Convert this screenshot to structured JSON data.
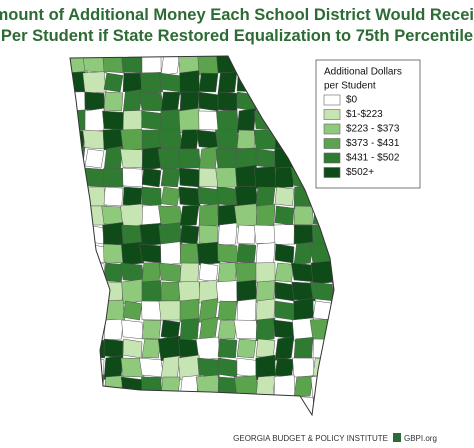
{
  "title": [
    "Amount of Additional Money Each School District Would Receive",
    "Per Student if State Restored Equalization to 75th Percentile"
  ],
  "legend": {
    "title": [
      "Additional Dollars",
      "per Student"
    ],
    "entries": [
      {
        "label": "$0",
        "color": "#ffffff"
      },
      {
        "label": "$1-$223",
        "color": "#c6e5b3"
      },
      {
        "label": "$223 - $373",
        "color": "#8fca7c"
      },
      {
        "label": "$373 - $431",
        "color": "#5ba34d"
      },
      {
        "label": "$431 - $502",
        "color": "#2f7b31"
      },
      {
        "label": "$502+",
        "color": "#0e4b18"
      }
    ]
  },
  "footer": {
    "organization": "GEORGIA BUDGET & POLICY INSTITUTE",
    "website": "GBPI.org"
  }
}
